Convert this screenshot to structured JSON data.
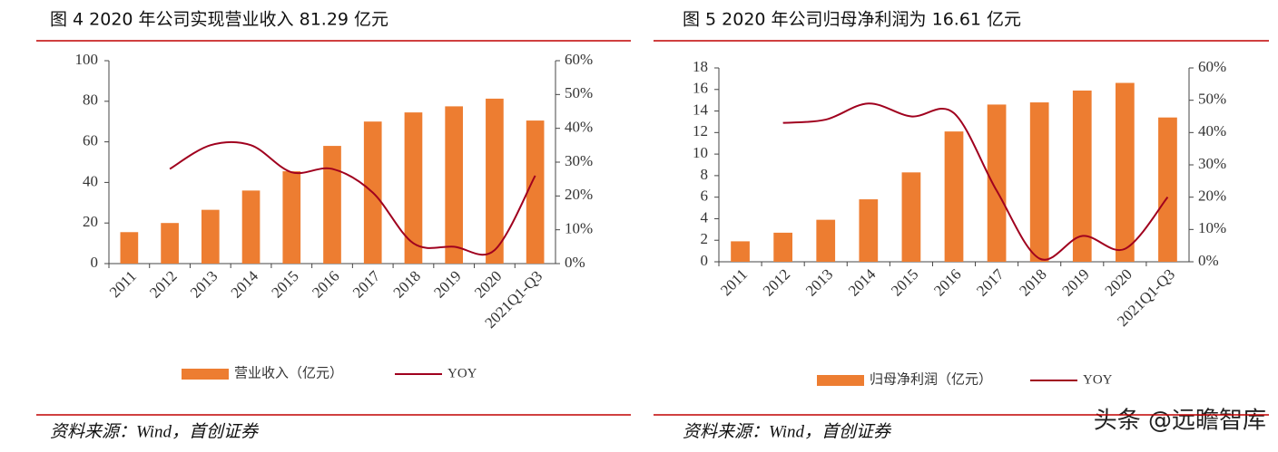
{
  "chart_data": [
    {
      "type": "bar",
      "title": "图 4 2020 年公司实现营业收入 81.29 亿元",
      "categories": [
        "2011",
        "2012",
        "2013",
        "2014",
        "2015",
        "2016",
        "2017",
        "2018",
        "2019",
        "2020",
        "2021Q1-Q3"
      ],
      "series": [
        {
          "name": "营业收入（亿元）",
          "type": "bar",
          "color": "#ED7D31",
          "values": [
            15.5,
            20,
            26.5,
            36,
            45.5,
            58,
            70,
            74.5,
            77.5,
            81.29,
            70.5
          ]
        },
        {
          "name": "YOY",
          "type": "line",
          "axis": "y2",
          "color": "#A0001E",
          "values": [
            null,
            28,
            35,
            35,
            27,
            28,
            21,
            6,
            5,
            4,
            26
          ]
        }
      ],
      "ylim": [
        0,
        100
      ],
      "yticks": [
        0,
        20,
        40,
        60,
        80,
        100
      ],
      "y2lim": [
        0,
        60
      ],
      "y2ticks": [
        {
          "value": 0,
          "label": "0%"
        },
        {
          "value": 10,
          "label": "10%"
        },
        {
          "value": 20,
          "label": "20%"
        },
        {
          "value": 30,
          "label": "30%"
        },
        {
          "value": 40,
          "label": "40%"
        },
        {
          "value": 50,
          "label": "50%"
        },
        {
          "value": 60,
          "label": "60%"
        }
      ],
      "legend": "bottom",
      "source": "资料来源：Wind，首创证券"
    },
    {
      "type": "bar",
      "title": "图 5 2020 年公司归母净利润为 16.61 亿元",
      "categories": [
        "2011",
        "2012",
        "2013",
        "2014",
        "2015",
        "2016",
        "2017",
        "2018",
        "2019",
        "2020",
        "2021Q1-Q3"
      ],
      "series": [
        {
          "name": "归母净利润（亿元）",
          "type": "bar",
          "color": "#ED7D31",
          "values": [
            1.9,
            2.7,
            3.9,
            5.8,
            8.3,
            12.1,
            14.6,
            14.8,
            15.9,
            16.61,
            13.4
          ]
        },
        {
          "name": "YOY",
          "type": "line",
          "axis": "y2",
          "color": "#A0001E",
          "values": [
            null,
            43,
            44,
            49,
            45,
            46,
            22,
            1,
            8,
            4,
            20
          ]
        }
      ],
      "ylim": [
        0,
        18
      ],
      "yticks": [
        0,
        2,
        4,
        6,
        8,
        10,
        12,
        14,
        16,
        18
      ],
      "y2lim": [
        0,
        60
      ],
      "y2ticks": [
        {
          "value": 0,
          "label": "0%"
        },
        {
          "value": 10,
          "label": "10%"
        },
        {
          "value": 20,
          "label": "20%"
        },
        {
          "value": 30,
          "label": "30%"
        },
        {
          "value": 40,
          "label": "40%"
        },
        {
          "value": 50,
          "label": "50%"
        },
        {
          "value": 60,
          "label": "60%"
        }
      ],
      "legend": "bottom",
      "source": "资料来源：Wind，首创证券"
    }
  ],
  "watermark": "头条 @远瞻智库"
}
